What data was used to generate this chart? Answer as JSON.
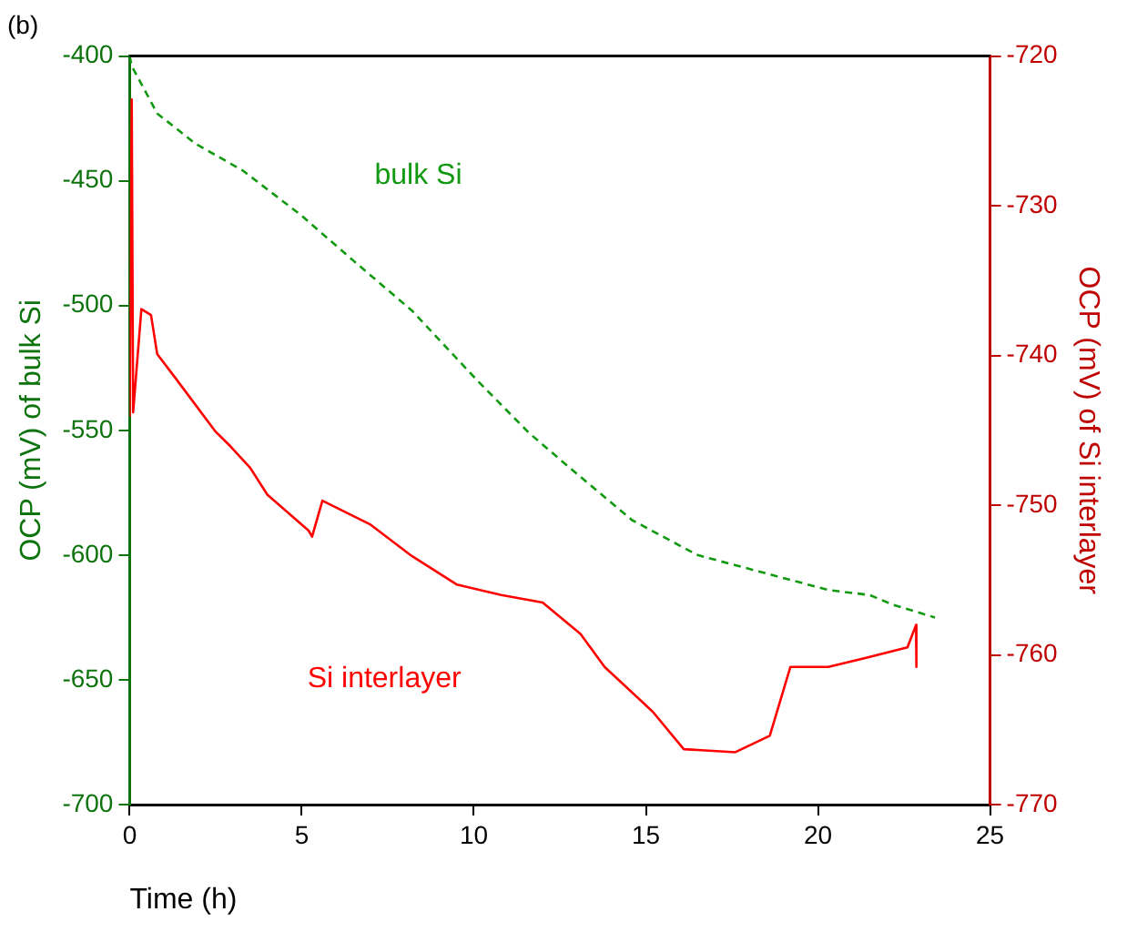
{
  "chart_data": {
    "type": "line",
    "title": "(b)",
    "xlabel": "Time (h)",
    "ylabel": "OCP (mV) of bulk Si",
    "y2label": "OCP (mV) of Si interlayer",
    "xlim": [
      0,
      25
    ],
    "xticks": [
      0,
      5,
      10,
      15,
      20,
      25
    ],
    "ylim": [
      -700,
      -400
    ],
    "yticks": [
      -700,
      -650,
      -600,
      -550,
      -500,
      -450,
      -400
    ],
    "y2lim": [
      -770,
      -720
    ],
    "y2ticks": [
      -770,
      -760,
      -750,
      -740,
      -730,
      -720
    ],
    "grid": false,
    "legend": false,
    "marker": "none",
    "series": [
      {
        "name": "bulk Si",
        "color": "#119911",
        "line_style": "dashed",
        "x": [
          0,
          0.06,
          0.8,
          1.9,
          3.3,
          5.0,
          6.5,
          8.2,
          10.1,
          11.6,
          12.7,
          14.6,
          16.5,
          18.4,
          20.3,
          21.5,
          22.2,
          23.4
        ],
        "values": [
          -400,
          -404,
          -423,
          -435,
          -446,
          -464,
          -482,
          -502,
          -530,
          -551,
          -564,
          -586,
          -600,
          -607,
          -614,
          -616,
          -620,
          -625
        ]
      },
      {
        "name": "Si interlayer",
        "color": "#ff0000",
        "line_style": "solid",
        "axis": "y2",
        "x": [
          0,
          0.06,
          0.1,
          0.34,
          0.62,
          0.8,
          1.36,
          2.5,
          2.9,
          3.5,
          4.0,
          5.2,
          5.3,
          5.6,
          7.0,
          8.2,
          9.5,
          10.8,
          12.0,
          13.1,
          13.8,
          15.2,
          16.1,
          17.6,
          18.6,
          19.2,
          20.3,
          21.4,
          22.6,
          22.85,
          22.86
        ],
        "values": [
          -744.1,
          -722.9,
          -743.8,
          -736.9,
          -737.3,
          -739.9,
          -741.6,
          -745.1,
          -746.0,
          -747.5,
          -749.3,
          -751.7,
          -752.1,
          -749.7,
          -751.3,
          -753.4,
          -755.3,
          -756.0,
          -756.5,
          -758.6,
          -760.8,
          -763.8,
          -766.3,
          -766.5,
          -765.4,
          -760.8,
          -760.8,
          -760.2,
          -759.5,
          -758.0,
          -760.8
        ]
      }
    ]
  }
}
